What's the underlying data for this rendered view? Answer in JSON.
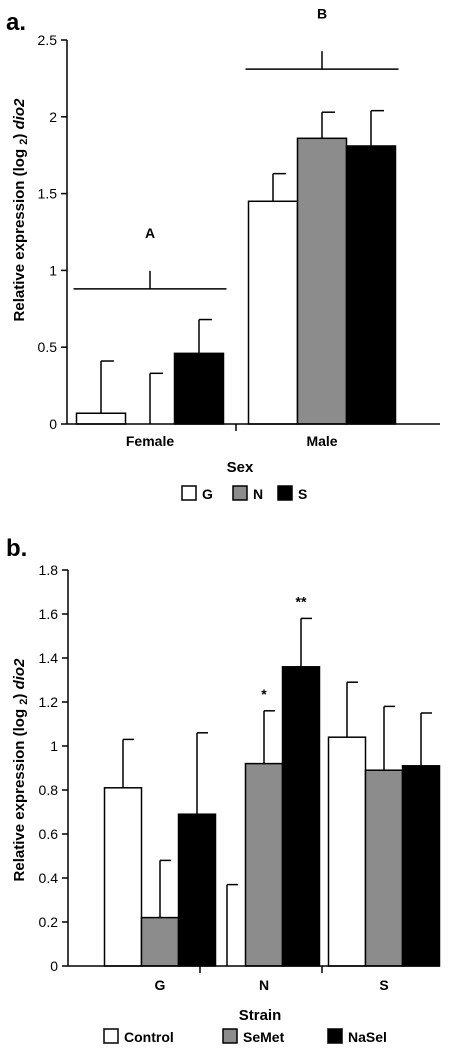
{
  "colors": {
    "G": "#ffffff",
    "N": "#8c8c8c",
    "S": "#000000",
    "axis": "#000000"
  },
  "chart_data": [
    {
      "panel_label": "a.",
      "type": "bar",
      "categories": [
        "Female",
        "Male"
      ],
      "series": [
        {
          "name": "G",
          "values": [
            0.07,
            1.45
          ],
          "errors": [
            0.34,
            0.18
          ]
        },
        {
          "name": "N",
          "values": [
            0.0,
            1.86
          ],
          "errors": [
            0.33,
            0.17
          ]
        },
        {
          "name": "S",
          "values": [
            0.46,
            1.81
          ],
          "errors": [
            0.22,
            0.23
          ]
        }
      ],
      "xlabel": "Sex",
      "ylabel_pre": "Relative expression (log ",
      "ylabel_sub": "2",
      "ylabel_post": ") ",
      "ylabel_gene": "dio2",
      "ylim": [
        0,
        2.5
      ],
      "ytick_labels": [
        "0",
        "0.5",
        "1",
        "1.5",
        "2",
        "2.5"
      ],
      "annotations": [
        {
          "text": "A",
          "x_category": "Female",
          "y": 1.21
        },
        {
          "text": "B",
          "x_category": "Male",
          "y": 2.64
        }
      ],
      "bracket_levels": [
        0.88,
        2.31
      ],
      "legend": [
        "G",
        "N",
        "S"
      ]
    },
    {
      "panel_label": "b.",
      "type": "bar",
      "categories": [
        "G",
        "N",
        "S"
      ],
      "series": [
        {
          "name": "Control",
          "values": [
            0.81,
            0.0,
            1.04
          ],
          "errors": [
            0.22,
            0.37,
            0.25
          ]
        },
        {
          "name": "SeMet",
          "values": [
            0.22,
            0.92,
            0.89
          ],
          "errors": [
            0.26,
            0.24,
            0.29
          ]
        },
        {
          "name": "NaSel",
          "values": [
            0.69,
            1.36,
            0.91
          ],
          "errors": [
            0.37,
            0.22,
            0.24
          ]
        }
      ],
      "xlabel": "Strain",
      "ylabel_pre": "Relative expression (log ",
      "ylabel_sub": "2",
      "ylabel_post": ") ",
      "ylabel_gene": "dio2",
      "ylim": [
        0,
        1.8
      ],
      "ytick_labels": [
        "0",
        "0.2",
        "0.4",
        "0.6",
        "0.8",
        "1",
        "1.2",
        "1.4",
        "1.6",
        "1.8"
      ],
      "annotations": [
        {
          "text": "*",
          "category": "N",
          "series": "SeMet"
        },
        {
          "text": "**",
          "category": "N",
          "series": "NaSel"
        }
      ],
      "legend": [
        "Control",
        "SeMet",
        "NaSel"
      ]
    }
  ]
}
